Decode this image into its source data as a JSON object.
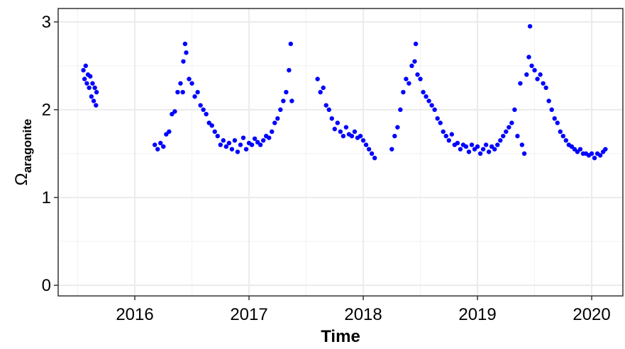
{
  "chart_data": {
    "type": "scatter",
    "x_label": "Time",
    "y_label": "Ω",
    "y_label_sub": "aragonite",
    "xlim": [
      2015.329,
      2020.273
    ],
    "ylim": [
      -0.121,
      3.153
    ],
    "xticks": [
      2016,
      2017,
      2018,
      2019,
      2020
    ],
    "yticks": [
      0,
      1,
      2,
      3
    ],
    "xminor": [
      2015.5,
      2016.5,
      2017.5,
      2018.5,
      2019.5
    ],
    "yminor": [
      0.5,
      1.5,
      2.5
    ],
    "grid": true,
    "series": [
      {
        "color": "#0000ff",
        "x": [
          2015.55,
          2015.56,
          2015.57,
          2015.58,
          2015.59,
          2015.6,
          2015.61,
          2015.62,
          2015.63,
          2015.64,
          2015.65,
          2015.66,
          2015.665,
          2016.175,
          2016.2,
          2016.225,
          2016.25,
          2016.275,
          2016.3,
          2016.325,
          2016.35,
          2016.375,
          2016.4,
          2016.42,
          2016.425,
          2016.44,
          2016.45,
          2016.475,
          2016.5,
          2016.525,
          2016.55,
          2016.575,
          2016.6,
          2016.625,
          2016.65,
          2016.675,
          2016.7,
          2016.725,
          2016.75,
          2016.775,
          2016.8,
          2016.825,
          2016.85,
          2016.875,
          2016.9,
          2016.925,
          2016.95,
          2016.975,
          2017.0,
          2017.025,
          2017.05,
          2017.075,
          2017.1,
          2017.125,
          2017.15,
          2017.175,
          2017.2,
          2017.225,
          2017.25,
          2017.275,
          2017.3,
          2017.325,
          2017.35,
          2017.365,
          2017.375,
          2017.6,
          2017.625,
          2017.65,
          2017.675,
          2017.7,
          2017.725,
          2017.75,
          2017.775,
          2017.8,
          2017.825,
          2017.85,
          2017.875,
          2017.9,
          2017.925,
          2017.95,
          2017.975,
          2018.0,
          2018.025,
          2018.05,
          2018.075,
          2018.1,
          2018.25,
          2018.275,
          2018.3,
          2018.325,
          2018.35,
          2018.375,
          2018.4,
          2018.425,
          2018.45,
          2018.46,
          2018.475,
          2018.5,
          2018.525,
          2018.55,
          2018.575,
          2018.6,
          2018.625,
          2018.65,
          2018.675,
          2018.7,
          2018.725,
          2018.75,
          2018.775,
          2018.8,
          2018.825,
          2018.85,
          2018.875,
          2018.9,
          2018.925,
          2018.95,
          2018.975,
          2019.0,
          2019.025,
          2019.05,
          2019.075,
          2019.1,
          2019.125,
          2019.15,
          2019.175,
          2019.2,
          2019.225,
          2019.25,
          2019.275,
          2019.3,
          2019.325,
          2019.35,
          2019.375,
          2019.39,
          2019.41,
          2019.43,
          2019.45,
          2019.46,
          2019.475,
          2019.5,
          2019.525,
          2019.55,
          2019.575,
          2019.6,
          2019.625,
          2019.65,
          2019.675,
          2019.7,
          2019.725,
          2019.75,
          2019.775,
          2019.8,
          2019.825,
          2019.85,
          2019.875,
          2019.9,
          2019.925,
          2019.95,
          2019.975,
          2020.0,
          2020.025,
          2020.05,
          2020.075,
          2020.1,
          2020.12
        ],
        "values": [
          2.45,
          2.35,
          2.5,
          2.3,
          2.4,
          2.25,
          2.38,
          2.15,
          2.3,
          2.1,
          2.25,
          2.05,
          2.2,
          1.6,
          1.55,
          1.62,
          1.58,
          1.72,
          1.75,
          1.95,
          1.98,
          2.2,
          2.3,
          2.2,
          2.55,
          2.75,
          2.65,
          2.35,
          2.3,
          2.15,
          2.2,
          2.05,
          2.0,
          1.95,
          1.85,
          1.82,
          1.75,
          1.7,
          1.6,
          1.65,
          1.58,
          1.62,
          1.55,
          1.65,
          1.52,
          1.6,
          1.68,
          1.55,
          1.62,
          1.6,
          1.67,
          1.63,
          1.6,
          1.65,
          1.7,
          1.68,
          1.75,
          1.85,
          1.9,
          2.0,
          2.1,
          2.2,
          2.45,
          2.75,
          2.1,
          2.35,
          2.2,
          2.25,
          2.05,
          2.0,
          1.9,
          1.78,
          1.85,
          1.75,
          1.7,
          1.8,
          1.72,
          1.7,
          1.75,
          1.68,
          1.7,
          1.65,
          1.6,
          1.55,
          1.5,
          1.45,
          1.55,
          1.7,
          1.8,
          2.0,
          2.2,
          2.35,
          2.3,
          2.5,
          2.55,
          2.75,
          2.4,
          2.35,
          2.2,
          2.15,
          2.1,
          2.05,
          2.0,
          1.9,
          1.85,
          1.75,
          1.7,
          1.65,
          1.72,
          1.6,
          1.62,
          1.55,
          1.6,
          1.58,
          1.52,
          1.6,
          1.55,
          1.58,
          1.5,
          1.55,
          1.6,
          1.52,
          1.58,
          1.55,
          1.6,
          1.65,
          1.7,
          1.75,
          1.8,
          1.85,
          2.0,
          1.7,
          2.3,
          1.6,
          1.5,
          2.4,
          2.6,
          2.95,
          2.5,
          2.45,
          2.35,
          2.4,
          2.3,
          2.25,
          2.1,
          2.0,
          1.9,
          1.85,
          1.75,
          1.7,
          1.65,
          1.6,
          1.58,
          1.55,
          1.52,
          1.55,
          1.5,
          1.5,
          1.48,
          1.5,
          1.45,
          1.5,
          1.48,
          1.52,
          1.55
        ]
      }
    ]
  }
}
